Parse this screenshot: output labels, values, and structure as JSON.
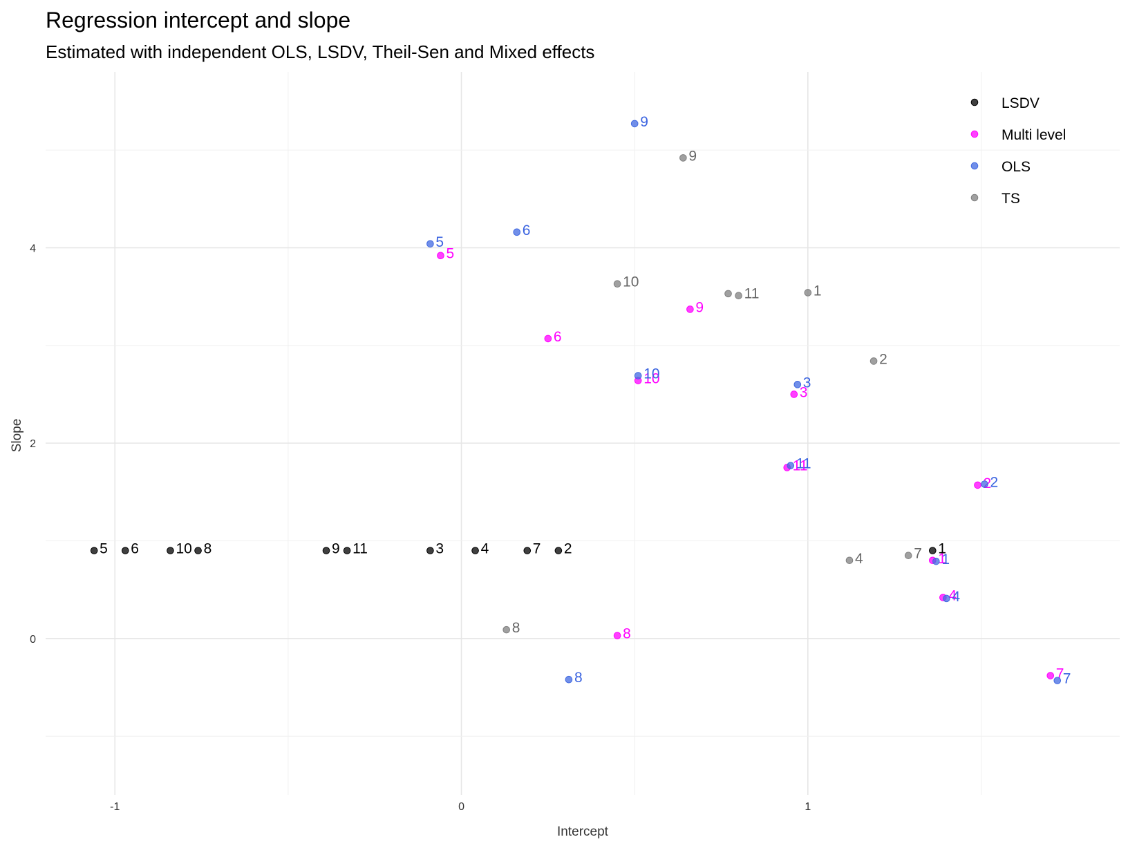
{
  "chart_data": {
    "type": "scatter",
    "title": "Regression intercept and slope",
    "subtitle": "Estimated with independent OLS, LSDV, Theil-Sen and Mixed effects",
    "xlabel": "Intercept",
    "ylabel": "Slope",
    "xlim": [
      -1.2,
      1.9
    ],
    "ylim": [
      -1.6,
      5.8
    ],
    "x_ticks": [
      -1,
      0,
      1
    ],
    "x_tick_labels": [
      "-1",
      "0",
      "1"
    ],
    "y_ticks": [
      0,
      2,
      4
    ],
    "y_tick_labels": [
      "0",
      "2",
      "4"
    ],
    "grid": true,
    "legend_position": "top-right",
    "series": [
      {
        "name": "LSDV",
        "color": "#000000",
        "points": [
          {
            "label": "5",
            "x": -1.06,
            "y": 0.9
          },
          {
            "label": "6",
            "x": -0.97,
            "y": 0.9
          },
          {
            "label": "10",
            "x": -0.84,
            "y": 0.9
          },
          {
            "label": "8",
            "x": -0.76,
            "y": 0.9
          },
          {
            "label": "9",
            "x": -0.39,
            "y": 0.9
          },
          {
            "label": "11",
            "x": -0.33,
            "y": 0.9
          },
          {
            "label": "3",
            "x": -0.09,
            "y": 0.9
          },
          {
            "label": "4",
            "x": 0.04,
            "y": 0.9
          },
          {
            "label": "7",
            "x": 0.19,
            "y": 0.9
          },
          {
            "label": "2",
            "x": 0.28,
            "y": 0.9
          },
          {
            "label": "1",
            "x": 1.36,
            "y": 0.9
          }
        ]
      },
      {
        "name": "Multi level",
        "color": "#ff00ff",
        "points": [
          {
            "label": "5",
            "x": -0.06,
            "y": 3.92
          },
          {
            "label": "6",
            "x": 0.25,
            "y": 3.07
          },
          {
            "label": "10",
            "x": 0.51,
            "y": 2.64
          },
          {
            "label": "9",
            "x": 0.66,
            "y": 3.37
          },
          {
            "label": "3",
            "x": 0.96,
            "y": 2.5
          },
          {
            "label": "11",
            "x": 0.94,
            "y": 1.75
          },
          {
            "label": "2",
            "x": 1.49,
            "y": 1.57
          },
          {
            "label": "1",
            "x": 1.36,
            "y": 0.8
          },
          {
            "label": "4",
            "x": 1.39,
            "y": 0.42
          },
          {
            "label": "8",
            "x": 0.45,
            "y": 0.03
          },
          {
            "label": "7",
            "x": 1.7,
            "y": -0.38
          }
        ]
      },
      {
        "name": "OLS",
        "color": "#4169e1",
        "points": [
          {
            "label": "9",
            "x": 0.5,
            "y": 5.27
          },
          {
            "label": "5",
            "x": -0.09,
            "y": 4.04
          },
          {
            "label": "6",
            "x": 0.16,
            "y": 4.16
          },
          {
            "label": "10",
            "x": 0.51,
            "y": 2.69
          },
          {
            "label": "3",
            "x": 0.97,
            "y": 2.6
          },
          {
            "label": "11",
            "x": 0.95,
            "y": 1.77
          },
          {
            "label": "2",
            "x": 1.51,
            "y": 1.58
          },
          {
            "label": "1",
            "x": 1.37,
            "y": 0.79
          },
          {
            "label": "4",
            "x": 1.4,
            "y": 0.41
          },
          {
            "label": "8",
            "x": 0.31,
            "y": -0.42
          },
          {
            "label": "7",
            "x": 1.72,
            "y": -0.43
          }
        ]
      },
      {
        "name": "TS",
        "color": "#808080",
        "points": [
          {
            "label": "9",
            "x": 0.64,
            "y": 4.92
          },
          {
            "label": "10",
            "x": 0.45,
            "y": 3.63
          },
          {
            "label": "11",
            "x": 0.8,
            "y": 3.51
          },
          {
            "label": "",
            "x": 0.77,
            "y": 3.53
          },
          {
            "label": "1",
            "x": 1.0,
            "y": 3.54
          },
          {
            "label": "2",
            "x": 1.19,
            "y": 2.84
          },
          {
            "label": "4",
            "x": 1.12,
            "y": 0.8
          },
          {
            "label": "7",
            "x": 1.29,
            "y": 0.85
          },
          {
            "label": "8",
            "x": 0.13,
            "y": 0.09
          }
        ]
      }
    ]
  }
}
